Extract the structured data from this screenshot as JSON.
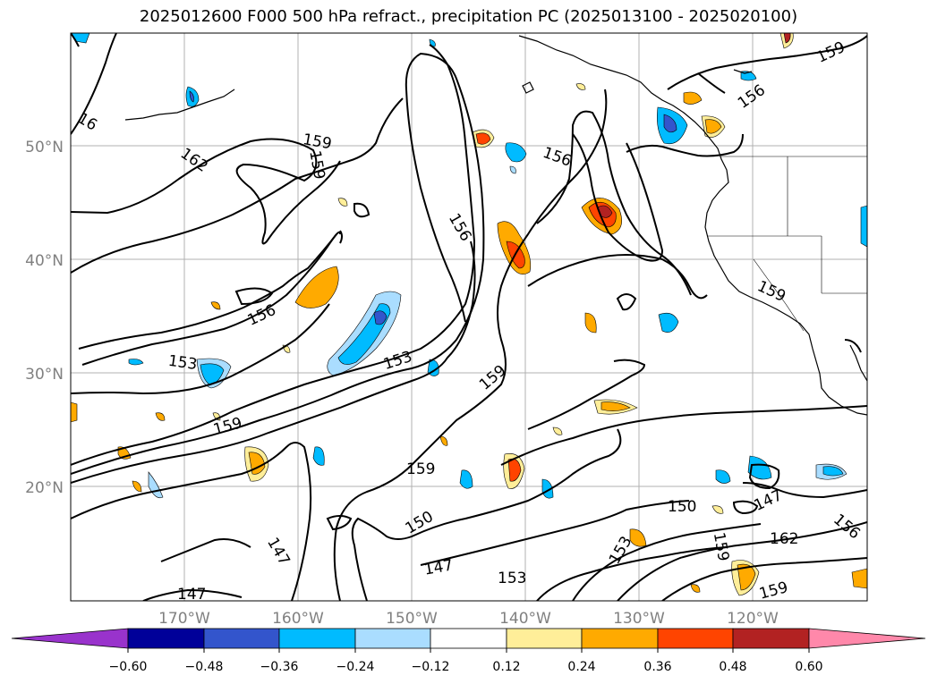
{
  "title": "2025012600 F000 500 hPa refract., precipitation PC (2025013100 - 2025020100)",
  "map": {
    "lon_ticks": [
      "170°W",
      "160°W",
      "150°W",
      "140°W",
      "130°W",
      "120°W"
    ],
    "lat_ticks": [
      "50°N",
      "40°N",
      "30°N",
      "20°N"
    ],
    "contour_labels": [
      "156",
      "153",
      "159",
      "162",
      "147",
      "150",
      "159",
      "156",
      "153",
      "147",
      "159",
      "162",
      "150",
      "153",
      "156",
      "159",
      "159"
    ],
    "tick_color": "#808080",
    "land_line_color": "#000000"
  },
  "colorbar": {
    "colors": [
      "#9933cc",
      "#000099",
      "#3355cc",
      "#00bbff",
      "#aaddff",
      "#ffffff",
      "#ffee99",
      "#ffaa00",
      "#ff4400",
      "#b22222",
      "#ff88aa"
    ],
    "tick_labels": [
      "−0.60",
      "−0.48",
      "−0.36",
      "−0.24",
      "−0.12",
      "0.12",
      "0.24",
      "0.36",
      "0.48",
      "0.60"
    ],
    "extend": "both"
  }
}
